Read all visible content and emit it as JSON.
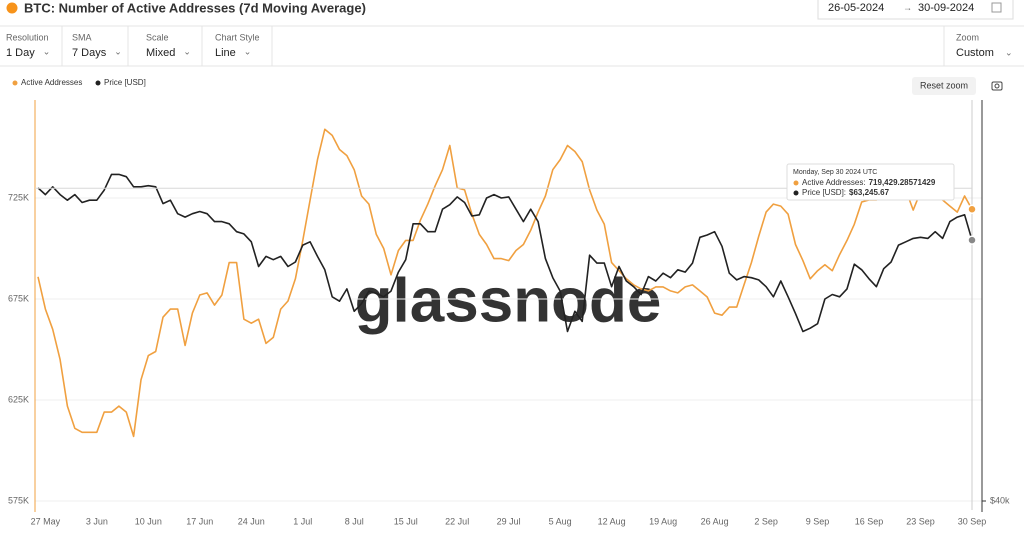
{
  "header": {
    "title": "BTC: Number of Active Addresses (7d Moving Average)",
    "date_from": "26-05-2024",
    "date_to": "30-09-2024"
  },
  "controls": [
    {
      "label": "Resolution",
      "value": "1 Day"
    },
    {
      "label": "SMA",
      "value": "7 Days"
    },
    {
      "label": "Scale",
      "value": "Mixed"
    },
    {
      "label": "Chart Style",
      "value": "Line"
    }
  ],
  "zoom": {
    "label": "Zoom",
    "value": "Custom"
  },
  "reset_zoom": "Reset zoom",
  "watermark": "glassnode",
  "tooltip": {
    "date": "Monday, Sep 30 2024 UTC",
    "rows": [
      {
        "name": "Active Addresses:",
        "value": "719,429.28571429"
      },
      {
        "name": "Price [USD]:",
        "value": "$63,245.67"
      }
    ]
  },
  "chart_data": {
    "type": "line",
    "categories": [
      null,
      "27 May",
      null,
      null,
      null,
      null,
      null,
      null,
      "3 Jun",
      null,
      null,
      null,
      null,
      null,
      null,
      "10 Jun",
      null,
      null,
      null,
      null,
      null,
      null,
      "17 Jun",
      null,
      null,
      null,
      null,
      null,
      null,
      "24 Jun",
      null,
      null,
      null,
      null,
      null,
      null,
      "1 Jul",
      null,
      null,
      null,
      null,
      null,
      null,
      "8 Jul",
      null,
      null,
      null,
      null,
      null,
      null,
      "15 Jul",
      null,
      null,
      null,
      null,
      null,
      null,
      "22 Jul",
      null,
      null,
      null,
      null,
      null,
      null,
      "29 Jul",
      null,
      null,
      null,
      null,
      null,
      null,
      "5 Aug",
      null,
      null,
      null,
      null,
      null,
      null,
      "12 Aug",
      null,
      null,
      null,
      null,
      null,
      null,
      "19 Aug",
      null,
      null,
      null,
      null,
      null,
      null,
      "26 Aug",
      null,
      null,
      null,
      null,
      null,
      null,
      "2 Sep",
      null,
      null,
      null,
      null,
      null,
      null,
      "9 Sep",
      null,
      null,
      null,
      null,
      null,
      null,
      "16 Sep",
      null,
      null,
      null,
      null,
      null,
      null,
      "23 Sep",
      null,
      null,
      null,
      null,
      null,
      null,
      "30 Sep"
    ],
    "series": [
      {
        "name": "Active Addresses",
        "color": "#f0a040",
        "values": [
          686000,
          670000,
          660000,
          645000,
          622000,
          611000,
          609000,
          609000,
          609000,
          619000,
          619000,
          622000,
          619000,
          607000,
          635000,
          647000,
          649000,
          666000,
          670000,
          670000,
          652000,
          668000,
          677000,
          678000,
          672000,
          677000,
          693000,
          693000,
          665000,
          663000,
          665000,
          653000,
          656000,
          670000,
          674000,
          685000,
          704000,
          724000,
          744000,
          759000,
          756000,
          749000,
          746000,
          739000,
          726000,
          722000,
          707000,
          700000,
          687000,
          699000,
          704000,
          704000,
          714000,
          722000,
          731000,
          739000,
          751000,
          730000,
          729000,
          717000,
          707000,
          702000,
          695000,
          695000,
          694000,
          699000,
          702000,
          709000,
          718000,
          726000,
          739000,
          744000,
          751000,
          748000,
          743000,
          729000,
          719000,
          712000,
          693000,
          689000,
          685000,
          682000,
          680000,
          679000,
          681000,
          681000,
          679000,
          678000,
          681000,
          682000,
          679000,
          676000,
          668000,
          667000,
          671000,
          671000,
          682000,
          693000,
          706000,
          718000,
          722000,
          721000,
          717000,
          702000,
          694000,
          685000,
          689000,
          692000,
          689000,
          697000,
          704000,
          712000,
          723000,
          724000,
          724000,
          727000,
          730000,
          729000,
          729000,
          719000,
          728000,
          730000,
          728000,
          724000,
          721000,
          718000,
          726000,
          719429.29
        ]
      },
      {
        "name": "Price [USD]",
        "color": "#222222",
        "axis": "y2",
        "values": [
          67900,
          67300,
          68000,
          67300,
          66800,
          67300,
          66600,
          66800,
          66800,
          67700,
          69100,
          69100,
          68900,
          68000,
          68000,
          68100,
          68000,
          66500,
          66800,
          65600,
          65300,
          65600,
          65800,
          65600,
          64900,
          64900,
          64700,
          64000,
          63800,
          63100,
          60900,
          61800,
          61500,
          61800,
          60900,
          61300,
          62800,
          63100,
          61800,
          60600,
          58200,
          57800,
          58900,
          56900,
          57600,
          58700,
          58500,
          58200,
          58700,
          60400,
          61500,
          64700,
          64700,
          64000,
          64000,
          66000,
          66400,
          67100,
          66600,
          65400,
          65500,
          67000,
          67300,
          67000,
          67100,
          66000,
          64900,
          66000,
          64900,
          61600,
          59900,
          58700,
          55100,
          56900,
          56000,
          61900,
          61200,
          61200,
          59100,
          60900,
          59600,
          59100,
          58400,
          60000,
          59600,
          60300,
          59900,
          60600,
          60400,
          61200,
          63500,
          63700,
          64000,
          62700,
          60300,
          59700,
          60000,
          59900,
          59700,
          59100,
          58200,
          59600,
          58200,
          56700,
          55100,
          55400,
          55800,
          58000,
          58400,
          58200,
          58900,
          61100,
          60600,
          59800,
          59100,
          60700,
          61300,
          62800,
          63100,
          63400,
          63500,
          63400,
          64000,
          63400,
          64900,
          65300,
          65500,
          63245.67
        ]
      }
    ],
    "ylim": [
      575000,
      775000
    ],
    "yticks": [
      {
        "value": 575000,
        "label": "575K"
      },
      {
        "value": 625000,
        "label": "625K"
      },
      {
        "value": 675000,
        "label": "675K"
      },
      {
        "value": 725000,
        "label": "725K"
      }
    ],
    "y2lim": [
      40000,
      76000
    ],
    "y2ticks": [
      {
        "value": 40000,
        "label": "$40k"
      }
    ],
    "grid": true,
    "legend": "top-left"
  }
}
